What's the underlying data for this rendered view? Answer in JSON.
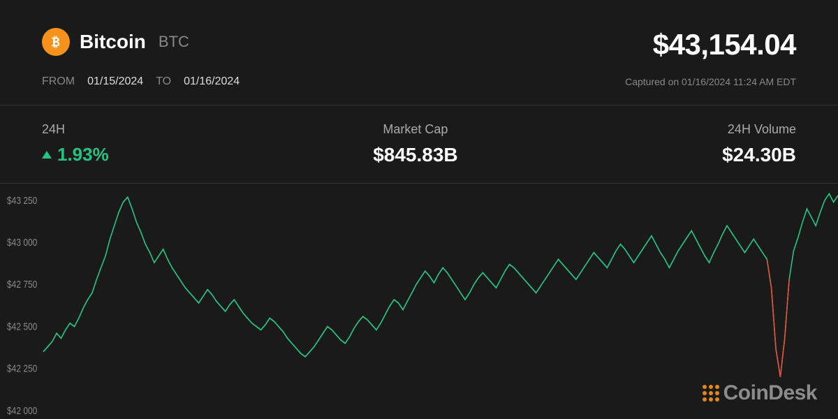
{
  "coin": {
    "name": "Bitcoin",
    "ticker": "BTC",
    "icon_color": "#f7931a"
  },
  "price": "$43,154.04",
  "date_range": {
    "from_label": "FROM",
    "from_value": "01/15/2024",
    "to_label": "TO",
    "to_value": "01/16/2024"
  },
  "captured": "Captured on 01/16/2024 11:24 AM EDT",
  "stats": {
    "change_24h": {
      "label": "24H",
      "value": "1.93%",
      "direction": "up",
      "color": "#26c281"
    },
    "market_cap": {
      "label": "Market Cap",
      "value": "$845.83B"
    },
    "volume_24h": {
      "label": "24H Volume",
      "value": "$24.30B"
    }
  },
  "chart": {
    "type": "line",
    "y_axis": {
      "min": 42000,
      "max": 43300,
      "ticks": [
        42000,
        42250,
        42500,
        42750,
        43000,
        43250
      ],
      "tick_labels": [
        "$42 000",
        "$42 250",
        "$42 500",
        "$42 750",
        "$43 000",
        "$43 250"
      ],
      "label_color": "#888",
      "label_fontsize": 12
    },
    "line_color": "#26c281",
    "dip_color": "#e74c3c",
    "line_width": 1.6,
    "background_color": "#1a1a1a",
    "data": [
      42350,
      42380,
      42410,
      42460,
      42430,
      42480,
      42520,
      42500,
      42550,
      42610,
      42660,
      42700,
      42780,
      42850,
      42920,
      43020,
      43100,
      43180,
      43240,
      43270,
      43200,
      43120,
      43060,
      42990,
      42940,
      42880,
      42920,
      42960,
      42900,
      42850,
      42810,
      42770,
      42730,
      42700,
      42670,
      42640,
      42680,
      42720,
      42690,
      42650,
      42620,
      42590,
      42630,
      42660,
      42620,
      42580,
      42550,
      42520,
      42500,
      42480,
      42510,
      42550,
      42530,
      42500,
      42470,
      42430,
      42400,
      42370,
      42340,
      42320,
      42350,
      42380,
      42420,
      42460,
      42500,
      42480,
      42450,
      42420,
      42400,
      42440,
      42490,
      42530,
      42560,
      42540,
      42510,
      42480,
      42520,
      42570,
      42620,
      42660,
      42640,
      42600,
      42650,
      42700,
      42750,
      42790,
      42830,
      42800,
      42760,
      42810,
      42850,
      42820,
      42780,
      42740,
      42700,
      42660,
      42700,
      42750,
      42790,
      42820,
      42790,
      42760,
      42730,
      42780,
      42830,
      42870,
      42850,
      42820,
      42790,
      42760,
      42730,
      42700,
      42740,
      42780,
      42820,
      42860,
      42900,
      42870,
      42840,
      42810,
      42780,
      42820,
      42860,
      42900,
      42940,
      42910,
      42880,
      42850,
      42900,
      42950,
      42990,
      42960,
      42920,
      42880,
      42920,
      42960,
      43000,
      43040,
      42990,
      42940,
      42900,
      42850,
      42900,
      42950,
      42990,
      43030,
      43070,
      43020,
      42970,
      42920,
      42880,
      42940,
      42990,
      43050,
      43100,
      43060,
      43020,
      42980,
      42940,
      42980,
      43020,
      42980,
      42940,
      42900,
      42730,
      42370,
      42200,
      42430,
      42780,
      42950,
      43030,
      43120,
      43200,
      43150,
      43100,
      43180,
      43250,
      43290,
      43240,
      43280
    ],
    "dip_segment": {
      "start_index": 163,
      "end_index": 168
    }
  },
  "watermark": {
    "text": "CoinDesk",
    "dot_color": "#f7931a",
    "text_color": "#999"
  }
}
